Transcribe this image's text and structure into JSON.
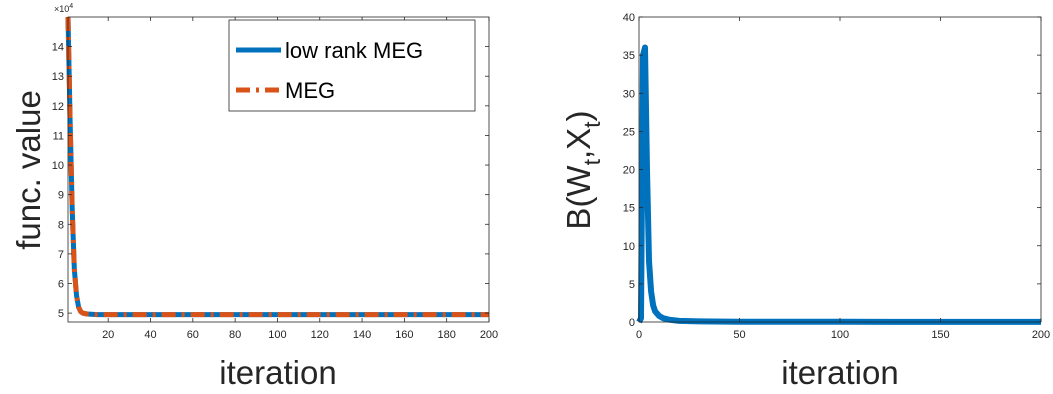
{
  "chart_data": [
    {
      "type": "line",
      "title": "",
      "xlabel": "iteration",
      "ylabel": "func. value",
      "y_exponent_label": "×10",
      "y_exponent_power": "4",
      "xlim": [
        1,
        200
      ],
      "ylim": [
        4.7,
        15
      ],
      "xticks": [
        20,
        40,
        60,
        80,
        100,
        120,
        140,
        160,
        180,
        200
      ],
      "yticks": [
        5,
        6,
        7,
        8,
        9,
        10,
        11,
        12,
        13,
        14
      ],
      "grid": false,
      "legend_position": "top-right",
      "series": [
        {
          "name": "low rank MEG",
          "color": "#0072BD",
          "style": "solid",
          "x": [
            1,
            2,
            3,
            4,
            5,
            6,
            7,
            8,
            10,
            12,
            15,
            20,
            30,
            50,
            100,
            150,
            200
          ],
          "y": [
            15,
            11.5,
            8.5,
            6.5,
            5.6,
            5.2,
            5.05,
            5.0,
            4.97,
            4.96,
            4.95,
            4.95,
            4.95,
            4.95,
            4.95,
            4.95,
            4.95
          ]
        },
        {
          "name": "MEG",
          "color": "#D95319",
          "style": "dashdot",
          "x": [
            1,
            2,
            3,
            4,
            5,
            6,
            7,
            8,
            10,
            12,
            15,
            20,
            30,
            50,
            100,
            150,
            200
          ],
          "y": [
            15,
            11.5,
            8.5,
            6.5,
            5.6,
            5.2,
            5.05,
            5.0,
            4.97,
            4.96,
            4.95,
            4.95,
            4.95,
            4.95,
            4.95,
            4.95,
            4.95
          ]
        }
      ]
    },
    {
      "type": "line",
      "title": "",
      "xlabel": "iteration",
      "ylabel": "B(W",
      "ylabel_sub1": "t",
      "ylabel_mid": ",X",
      "ylabel_sub2": "t",
      "ylabel_end": ")",
      "xlim": [
        0,
        200
      ],
      "ylim": [
        0,
        40
      ],
      "xticks": [
        0,
        50,
        100,
        150,
        200
      ],
      "yticks": [
        0,
        5,
        10,
        15,
        20,
        25,
        30,
        35,
        40
      ],
      "grid": false,
      "series": [
        {
          "color": "#0072BD",
          "style": "solid",
          "x": [
            0,
            1,
            2,
            3,
            4,
            5,
            6,
            7,
            8,
            10,
            12,
            15,
            20,
            30,
            50,
            100,
            150,
            200
          ],
          "y": [
            0,
            0.5,
            35,
            36,
            20,
            8,
            4,
            2.2,
            1.4,
            0.8,
            0.5,
            0.3,
            0.15,
            0.08,
            0.04,
            0.02,
            0.01,
            0.01
          ]
        }
      ]
    }
  ]
}
